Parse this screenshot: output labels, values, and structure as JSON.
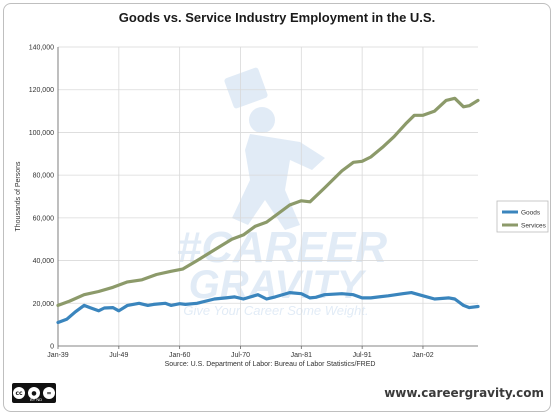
{
  "chart_data": {
    "type": "line",
    "title": "Goods vs. Service Industry Employment in the U.S.",
    "ylabel": "Thousands of Persons",
    "xlabel": "",
    "ylim": [
      0,
      140000
    ],
    "yticks": [
      0,
      20000,
      40000,
      60000,
      80000,
      100000,
      120000,
      140000
    ],
    "ytick_labels": [
      "0",
      "20,000",
      "40,000",
      "60,000",
      "80,000",
      "100,000",
      "120,000",
      "140,000"
    ],
    "xlim": [
      1939.0,
      2011.5
    ],
    "xticks": [
      1939.0,
      1949.5,
      1960.0,
      1970.5,
      1981.0,
      1991.5,
      2002.0
    ],
    "xtick_labels": [
      "Jan-39",
      "Jul-49",
      "Jan-60",
      "Jul-70",
      "Jan-81",
      "Jul-91",
      "Jan-02"
    ],
    "grid": true,
    "legend_position": "right",
    "source": "Source: U.S. Department of Labor: Bureau of Labor Statistics/FRED",
    "series": [
      {
        "name": "Goods",
        "color": "#3a85bd",
        "x": [
          1939.0,
          1940.5,
          1942.0,
          1943.5,
          1944.5,
          1946.0,
          1947.0,
          1948.5,
          1949.5,
          1951.0,
          1953.0,
          1954.5,
          1955.5,
          1957.5,
          1958.5,
          1960.0,
          1961.0,
          1963.0,
          1966.0,
          1968.0,
          1969.5,
          1971.0,
          1973.5,
          1975.0,
          1976.5,
          1979.0,
          1981.0,
          1982.5,
          1983.5,
          1985.0,
          1988.0,
          1990.0,
          1991.5,
          1993.0,
          1996.0,
          1998.5,
          2000.0,
          2002.0,
          2004.0,
          2006.5,
          2007.5,
          2009.0,
          2010.0,
          2011.5
        ],
        "values": [
          11000,
          12500,
          16000,
          19000,
          18000,
          16500,
          17800,
          18000,
          16500,
          19000,
          20000,
          19000,
          19500,
          20000,
          19000,
          19800,
          19500,
          20000,
          22000,
          22500,
          23000,
          22000,
          24000,
          22000,
          23000,
          25000,
          24500,
          22500,
          22800,
          24000,
          24500,
          24000,
          22500,
          22500,
          23500,
          24500,
          25000,
          23500,
          22000,
          22500,
          22000,
          19000,
          18000,
          18500
        ]
      },
      {
        "name": "Services",
        "color": "#8c9a6a",
        "x": [
          1939.0,
          1941.0,
          1943.5,
          1946.0,
          1948.5,
          1951.0,
          1953.5,
          1956.0,
          1958.5,
          1960.5,
          1963.0,
          1966.0,
          1969.0,
          1971.0,
          1973.0,
          1975.0,
          1977.0,
          1979.0,
          1981.0,
          1982.5,
          1985.0,
          1988.0,
          1990.0,
          1991.5,
          1993.0,
          1995.0,
          1997.0,
          1999.0,
          2000.5,
          2002.0,
          2004.0,
          2006.0,
          2007.5,
          2009.0,
          2010.0,
          2011.5
        ],
        "values": [
          19000,
          21000,
          24000,
          25500,
          27500,
          30000,
          31000,
          33500,
          35000,
          36000,
          40000,
          45000,
          50000,
          52000,
          56000,
          58000,
          62000,
          66000,
          68000,
          67500,
          74000,
          82000,
          86000,
          86500,
          88500,
          93000,
          98000,
          104000,
          108000,
          108000,
          110000,
          115000,
          116000,
          112000,
          112500,
          115000
        ]
      }
    ]
  },
  "watermark": {
    "line1": "#CAREER",
    "line2": "GRAVITY",
    "tagline": "Give Your Career Some Weight."
  },
  "footer": {
    "license_label": "BY    ND",
    "license_icon": "cc-by-nd-icon",
    "website": "www.careergravity.com"
  }
}
